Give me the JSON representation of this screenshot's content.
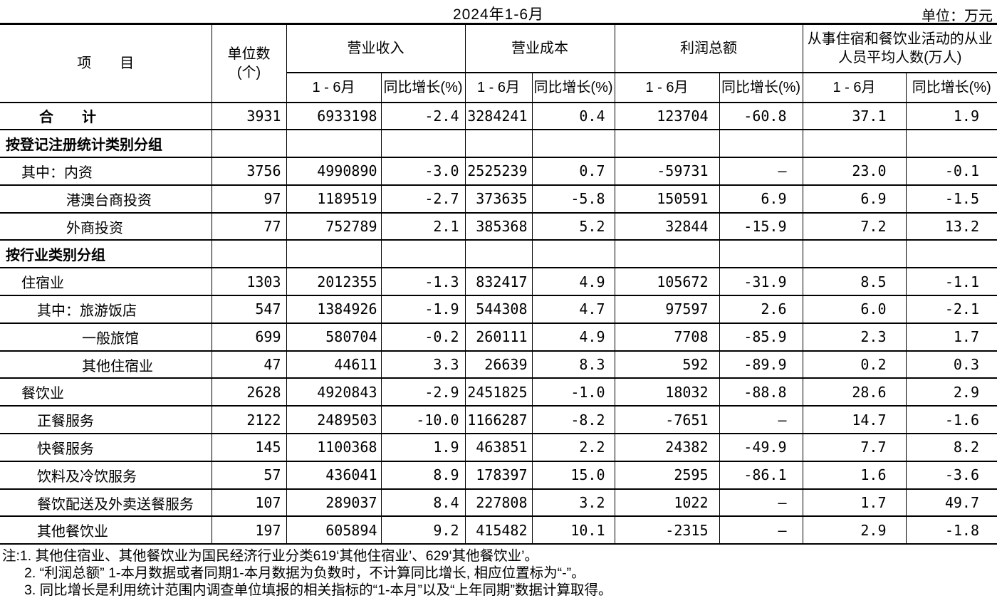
{
  "page": {
    "title": "2024年1-6月",
    "unit_label": "单位：万元"
  },
  "header": {
    "item_label": "项　　目",
    "units_line1": "单位数",
    "units_line2": "(个)",
    "group_revenue": "营业收入",
    "group_cost": "营业成本",
    "group_profit": "利润总额",
    "group_staff_line1": "从事住宿和餐饮业活动的从业",
    "group_staff_line2": "人员平均人数(万人)",
    "sub_period": "1 - 6月",
    "sub_growth": "同比增长(%)"
  },
  "columns": [
    "项目",
    "单位数(个)",
    "营业收入 1-6月",
    "营业收入 同比增长(%)",
    "营业成本 1-6月",
    "营业成本 同比增长(%)",
    "利润总额 1-6月",
    "利润总额 同比增长(%)",
    "从业人员平均人数 1-6月",
    "从业人员平均人数 同比增长(%)"
  ],
  "rows": [
    {
      "style": "total",
      "label": "合　　计",
      "values": [
        "3931",
        "6933198",
        "-2.4",
        "3284241",
        "0.4",
        "123704",
        "-60.8",
        "37.1",
        "1.9"
      ]
    },
    {
      "style": "group",
      "label": "按登记注册统计类别分组",
      "values": [
        "",
        "",
        "",
        "",
        "",
        "",
        "",
        "",
        ""
      ]
    },
    {
      "style": "l1",
      "label": "其中：内资",
      "values": [
        "3756",
        "4990890",
        "-3.0",
        "2525239",
        "0.7",
        "-59731",
        "—",
        "23.0",
        "-0.1"
      ]
    },
    {
      "style": "l3",
      "label": "港澳台商投资",
      "values": [
        "97",
        "1189519",
        "-2.7",
        "373635",
        "-5.8",
        "150591",
        "6.9",
        "6.9",
        "-1.5"
      ]
    },
    {
      "style": "l3",
      "label": "外商投资",
      "values": [
        "77",
        "752789",
        "2.1",
        "385368",
        "5.2",
        "32844",
        "-15.9",
        "7.2",
        "13.2"
      ]
    },
    {
      "style": "group",
      "label": "按行业类别分组",
      "values": [
        "",
        "",
        "",
        "",
        "",
        "",
        "",
        "",
        ""
      ]
    },
    {
      "style": "l1",
      "label": "住宿业",
      "values": [
        "1303",
        "2012355",
        "-1.3",
        "832417",
        "4.9",
        "105672",
        "-31.9",
        "8.5",
        "-1.1"
      ]
    },
    {
      "style": "l2",
      "label": "其中：旅游饭店",
      "values": [
        "547",
        "1384926",
        "-1.9",
        "544308",
        "4.7",
        "97597",
        "2.6",
        "6.0",
        "-2.1"
      ]
    },
    {
      "style": "l4",
      "label": "一般旅馆",
      "values": [
        "699",
        "580704",
        "-0.2",
        "260111",
        "4.9",
        "7708",
        "-85.9",
        "2.3",
        "1.7"
      ]
    },
    {
      "style": "l4",
      "label": "其他住宿业",
      "values": [
        "47",
        "44611",
        "3.3",
        "26639",
        "8.3",
        "592",
        "-89.9",
        "0.2",
        "0.3"
      ]
    },
    {
      "style": "l1",
      "label": "餐饮业",
      "values": [
        "2628",
        "4920843",
        "-2.9",
        "2451825",
        "-1.0",
        "18032",
        "-88.8",
        "28.6",
        "2.9"
      ]
    },
    {
      "style": "l2",
      "label": "正餐服务",
      "values": [
        "2122",
        "2489503",
        "-10.0",
        "1166287",
        "-8.2",
        "-7651",
        "—",
        "14.7",
        "-1.6"
      ]
    },
    {
      "style": "l2",
      "label": "快餐服务",
      "values": [
        "145",
        "1100368",
        "1.9",
        "463851",
        "2.2",
        "24382",
        "-49.9",
        "7.7",
        "8.2"
      ]
    },
    {
      "style": "l2",
      "label": "饮料及冷饮服务",
      "values": [
        "57",
        "436041",
        "8.9",
        "178397",
        "15.0",
        "2595",
        "-86.1",
        "1.6",
        "-3.6"
      ]
    },
    {
      "style": "l2",
      "label": "餐饮配送及外卖送餐服务",
      "values": [
        "107",
        "289037",
        "8.4",
        "227808",
        "3.2",
        "1022",
        "—",
        "1.7",
        "49.7"
      ]
    },
    {
      "style": "l2",
      "label": "其他餐饮业",
      "values": [
        "197",
        "605894",
        "9.2",
        "415482",
        "10.1",
        "-2315",
        "—",
        "2.9",
        "-1.8"
      ]
    }
  ],
  "notes": [
    "注:1. 其他住宿业、其他餐饮业为国民经济行业分类619‘其他住宿业’、629‘其他餐饮业’。",
    "2. “利润总额” 1-本月数据或者同期1-本月数据为负数时，不计算同比增长, 相应位置标为“-”。",
    "3. 同比增长是利用统计范围内调查单位填报的相关指标的“1-本月”以及“上年同期”数据计算取得。"
  ]
}
